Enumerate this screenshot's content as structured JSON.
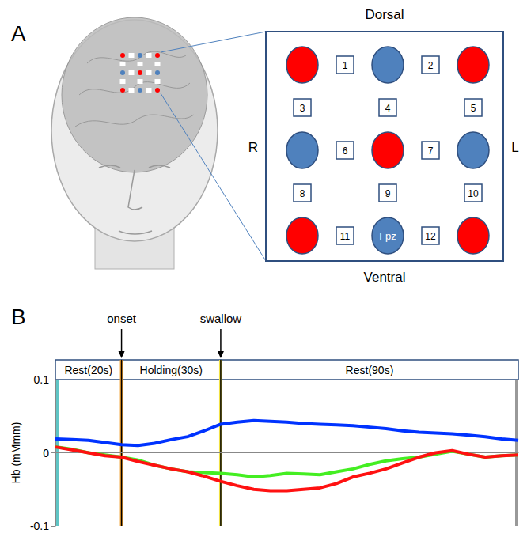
{
  "panel_labels": [
    "A",
    "B"
  ],
  "probe_layout": {
    "orientation_labels": {
      "top": "Dorsal",
      "bottom": "Ventral",
      "left": "R",
      "right": "L"
    },
    "optodes": [
      {
        "row": 0,
        "col": 0,
        "color": "#ff0000"
      },
      {
        "row": 0,
        "col": 2,
        "color": "#4f81bd"
      },
      {
        "row": 0,
        "col": 4,
        "color": "#ff0000"
      },
      {
        "row": 2,
        "col": 0,
        "color": "#4f81bd"
      },
      {
        "row": 2,
        "col": 2,
        "color": "#ff0000"
      },
      {
        "row": 2,
        "col": 4,
        "color": "#4f81bd"
      },
      {
        "row": 4,
        "col": 0,
        "color": "#ff0000"
      },
      {
        "row": 4,
        "col": 2,
        "color": "#4f81bd",
        "label": "Fpz"
      },
      {
        "row": 4,
        "col": 4,
        "color": "#ff0000"
      }
    ],
    "channels": [
      {
        "number": 1,
        "row": 0,
        "col": 1
      },
      {
        "number": 2,
        "row": 0,
        "col": 3
      },
      {
        "number": 3,
        "row": 1,
        "col": 0
      },
      {
        "number": 4,
        "row": 1,
        "col": 2
      },
      {
        "number": 5,
        "row": 1,
        "col": 4
      },
      {
        "number": 6,
        "row": 2,
        "col": 1
      },
      {
        "number": 7,
        "row": 2,
        "col": 3
      },
      {
        "number": 8,
        "row": 3,
        "col": 0
      },
      {
        "number": 9,
        "row": 3,
        "col": 2
      },
      {
        "number": 10,
        "row": 3,
        "col": 4
      },
      {
        "number": 11,
        "row": 4,
        "col": 1
      },
      {
        "number": 12,
        "row": 4,
        "col": 3
      }
    ]
  },
  "chart_data": {
    "type": "line",
    "ylabel": "Hb (mMmm)",
    "x": [
      0,
      5,
      10,
      15,
      20,
      25,
      30,
      35,
      40,
      45,
      50,
      55,
      60,
      65,
      70,
      75,
      80,
      85,
      90,
      95,
      100,
      105,
      110,
      115,
      120,
      125,
      130,
      135,
      140
    ],
    "xlim": [
      0,
      140
    ],
    "ylim": [
      -0.1,
      0.1
    ],
    "yticks": [
      -0.1,
      0,
      0.1
    ],
    "tick_labels": "y",
    "grid": false,
    "series": [
      {
        "color": "#0033ff",
        "values": [
          0.019,
          0.018,
          0.017,
          0.014,
          0.011,
          0.01,
          0.013,
          0.018,
          0.022,
          0.03,
          0.039,
          0.042,
          0.044,
          0.043,
          0.042,
          0.04,
          0.039,
          0.038,
          0.037,
          0.035,
          0.033,
          0.03,
          0.028,
          0.027,
          0.026,
          0.024,
          0.022,
          0.019,
          0.017
        ]
      },
      {
        "color": "#44ee22",
        "values": [
          0.008,
          0.005,
          0.0,
          -0.003,
          -0.006,
          -0.01,
          -0.017,
          -0.022,
          -0.026,
          -0.027,
          -0.028,
          -0.03,
          -0.033,
          -0.031,
          -0.028,
          -0.029,
          -0.03,
          -0.026,
          -0.022,
          -0.016,
          -0.011,
          -0.008,
          -0.006,
          -0.002,
          0.002,
          -0.002,
          -0.006,
          -0.004,
          -0.003
        ]
      },
      {
        "color": "#ff1111",
        "values": [
          0.008,
          0.004,
          0.0,
          -0.004,
          -0.006,
          -0.012,
          -0.017,
          -0.022,
          -0.026,
          -0.032,
          -0.039,
          -0.045,
          -0.05,
          -0.052,
          -0.052,
          -0.05,
          -0.048,
          -0.042,
          -0.033,
          -0.028,
          -0.022,
          -0.014,
          -0.006,
          0.0,
          0.003,
          -0.002,
          -0.006,
          -0.004,
          -0.003
        ]
      }
    ],
    "events": [
      {
        "label": "onset",
        "x": 20,
        "color": "#f0a030"
      },
      {
        "label": "swallow",
        "x": 50,
        "color": "#f0e040"
      }
    ],
    "phases": [
      {
        "label": "Rest(20s)",
        "start": 0,
        "end": 20
      },
      {
        "label": "Holding(30s)",
        "start": 20,
        "end": 50
      },
      {
        "label": "Rest(90s)",
        "start": 50,
        "end": 140
      }
    ]
  }
}
